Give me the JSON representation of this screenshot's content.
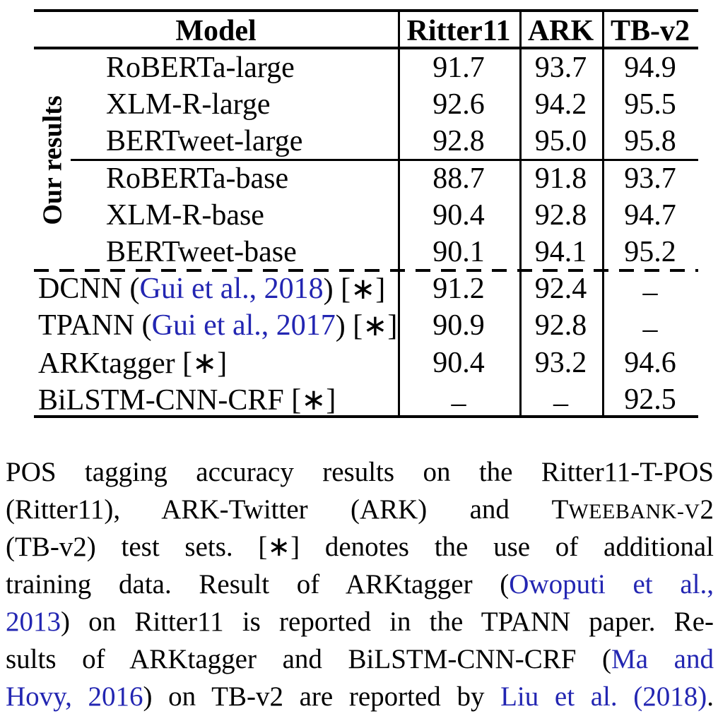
{
  "colors": {
    "link_blue": "#2326b2",
    "rule_black": "#000000",
    "background": "#ffffff"
  },
  "table": {
    "headers": [
      "Model",
      "Ritter11",
      "ARK",
      "TB-v2"
    ],
    "group_label": "Our results",
    "rows": [
      {
        "group": "ours",
        "name": [
          {
            "t": "RoBERTa-large"
          }
        ],
        "cells": [
          {
            "v": "91.7"
          },
          {
            "v": "93.7"
          },
          {
            "v": "94.9"
          }
        ]
      },
      {
        "group": "ours",
        "name": [
          {
            "t": "XLM-R-large"
          }
        ],
        "cells": [
          {
            "v": "92.6"
          },
          {
            "v": "94.2"
          },
          {
            "v": "95.5"
          }
        ]
      },
      {
        "group": "ours",
        "name": [
          {
            "t": "BERTweet-large"
          }
        ],
        "cells": [
          {
            "v": "92.8",
            "b": true
          },
          {
            "v": "95.0",
            "b": true
          },
          {
            "v": "95.8",
            "b": true
          }
        ]
      },
      {
        "group": "ours",
        "name": [
          {
            "t": "RoBERTa-base"
          }
        ],
        "cells": [
          {
            "v": "88.7"
          },
          {
            "v": "91.8"
          },
          {
            "v": "93.7"
          }
        ]
      },
      {
        "group": "ours",
        "name": [
          {
            "t": "XLM-R-base"
          }
        ],
        "cells": [
          {
            "v": "90.4",
            "b": true
          },
          {
            "v": "92.8"
          },
          {
            "v": "94.7"
          }
        ]
      },
      {
        "group": "ours",
        "name": [
          {
            "t": "BERTweet-base"
          }
        ],
        "cells": [
          {
            "v": "90.1"
          },
          {
            "v": "94.1",
            "b": true
          },
          {
            "v": "95.2",
            "b": true
          }
        ]
      },
      {
        "group": "prior",
        "name": [
          {
            "t": "DCNN ("
          },
          {
            "t": "Gui et al., 2018",
            "link": true
          },
          {
            "t": ") [∗]"
          }
        ],
        "cells": [
          {
            "v": "91.2"
          },
          {
            "v": "92.4"
          },
          {
            "v": "–",
            "dash": true
          }
        ]
      },
      {
        "group": "prior",
        "name": [
          {
            "t": "TPANN ("
          },
          {
            "t": "Gui et al., 2017",
            "link": true
          },
          {
            "t": ") [∗]"
          }
        ],
        "cells": [
          {
            "v": "90.9"
          },
          {
            "v": "92.8"
          },
          {
            "v": "–",
            "dash": true
          }
        ]
      },
      {
        "group": "prior",
        "name": [
          {
            "t": "ARKtagger [∗]"
          }
        ],
        "cells": [
          {
            "v": "90.4"
          },
          {
            "v": "93.2"
          },
          {
            "v": "94.6"
          }
        ]
      },
      {
        "group": "prior",
        "name": [
          {
            "t": "BiLSTM-CNN-CRF [∗]"
          }
        ],
        "cells": [
          {
            "v": "–",
            "dash": true
          },
          {
            "v": "–",
            "dash": true
          },
          {
            "v": "92.5"
          }
        ]
      }
    ]
  },
  "caption": {
    "lines": [
      [
        {
          "t": "POS tagging accuracy results on the Ritter11-T-POS"
        }
      ],
      [
        {
          "t": "(Ritter11), ARK-Twitter (ARK) and T"
        },
        {
          "t": "WEEBANK-V",
          "sc": true
        },
        {
          "t": "2"
        }
      ],
      [
        {
          "t": "(TB-v2) test sets. [∗] denotes the use of additional"
        }
      ],
      [
        {
          "t": "training data. Result of ARKtagger ("
        },
        {
          "t": "Owoputi et al.,",
          "link": true
        }
      ],
      [
        {
          "t": "2013",
          "link": true
        },
        {
          "t": ") on Ritter11 is reported in the TPANN paper. Re-"
        }
      ],
      [
        {
          "t": "sults of ARKtagger and BiLSTM-CNN-CRF ("
        },
        {
          "t": "Ma and",
          "link": true
        }
      ],
      [
        {
          "t": "Hovy, 2016",
          "link": true
        },
        {
          "t": ") on TB-v2 are reported by "
        },
        {
          "t": "Liu et al.",
          "link": true
        },
        {
          "t": " "
        },
        {
          "t": "(2018)",
          "link": true
        },
        {
          "t": "."
        }
      ]
    ]
  }
}
